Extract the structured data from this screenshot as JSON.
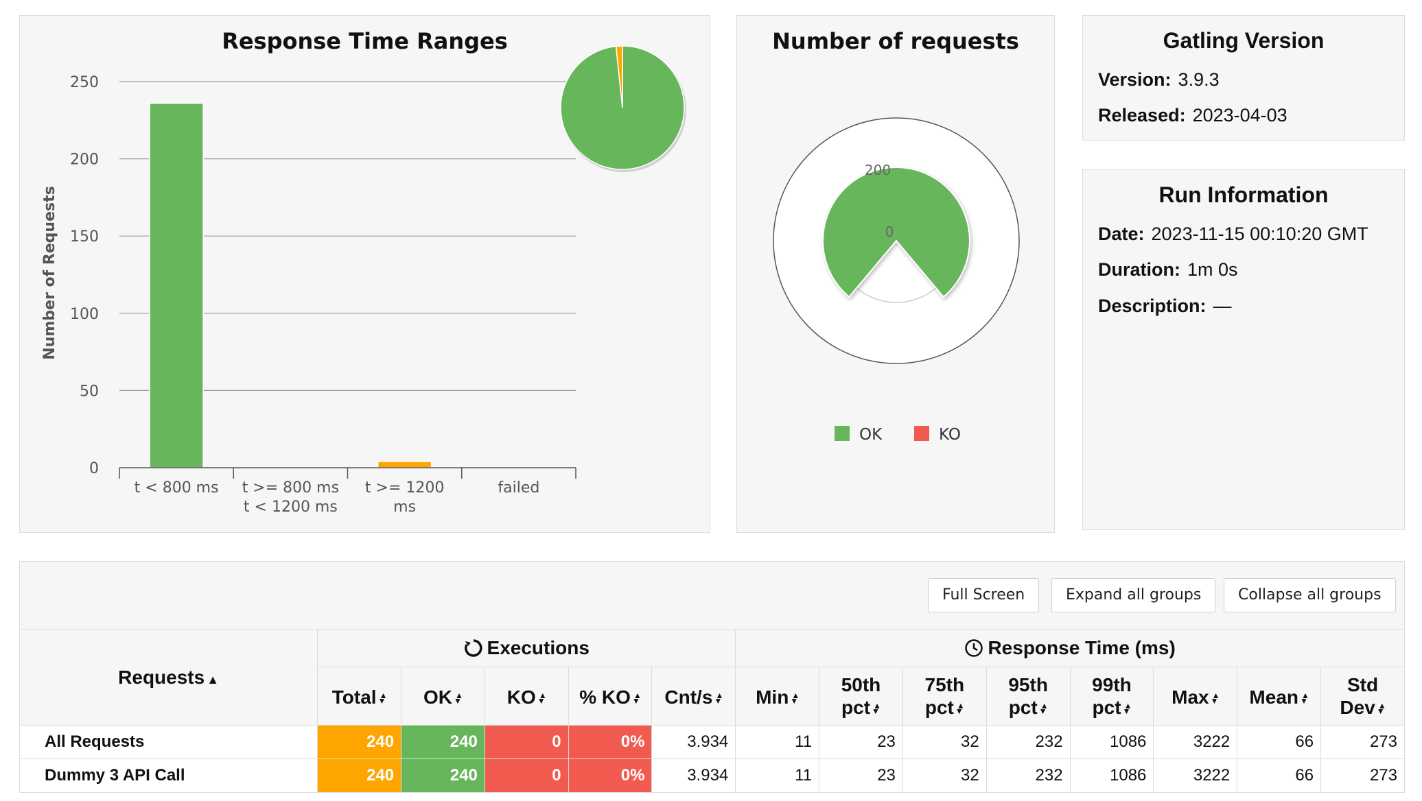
{
  "rt_chart": {
    "title": "Response Time Ranges",
    "ylabel": "Number of Requests",
    "y_ticks": [
      "0",
      "50",
      "100",
      "150",
      "200",
      "250"
    ],
    "categories": [
      {
        "line1": "t < 800 ms",
        "line2": ""
      },
      {
        "line1": "t >= 800 ms",
        "line2": "t < 1200 ms"
      },
      {
        "line1": "t >= 1200",
        "line2": "ms"
      },
      {
        "line1": "failed",
        "line2": ""
      }
    ]
  },
  "requests_chart": {
    "title": "Number of requests",
    "tick_top": "200",
    "tick_center": "0",
    "legend": [
      {
        "label": "OK",
        "color": "#68b65c"
      },
      {
        "label": "KO",
        "color": "#f15b4f"
      }
    ]
  },
  "chart_data": [
    {
      "type": "bar",
      "title": "Response Time Ranges",
      "ylabel": "Number of Requests",
      "categories": [
        "t < 800 ms",
        "t >= 800 ms t < 1200 ms",
        "t >= 1200 ms",
        "failed"
      ],
      "values": [
        236,
        0,
        4,
        0
      ],
      "colors": [
        "#68b65c",
        "#ffa500",
        "#ffa500",
        "#f15b4f"
      ],
      "ylim": [
        0,
        250
      ],
      "grid": true
    },
    {
      "type": "pie",
      "title": "Response Time Ranges",
      "categories": [
        "t < 800 ms",
        "t >= 800 ms t < 1200 ms",
        "t >= 1200 ms",
        "failed"
      ],
      "values": [
        236,
        0,
        4,
        0
      ]
    },
    {
      "type": "pie",
      "title": "Number of requests",
      "categories": [
        "OK",
        "KO"
      ],
      "values": [
        240,
        0
      ],
      "legend": "bottom"
    }
  ],
  "gatling": {
    "title": "Gatling Version",
    "version_label": "Version:",
    "version_value": "3.9.3",
    "released_label": "Released:",
    "released_value": "2023-04-03"
  },
  "run_info": {
    "title": "Run Information",
    "date_label": "Date:",
    "date_value": "2023-11-15 00:10:20 GMT",
    "duration_label": "Duration:",
    "duration_value": "1m 0s",
    "description_label": "Description:",
    "description_value": "—"
  },
  "toolbar": {
    "full_screen": "Full Screen",
    "expand_all": "Expand all groups",
    "collapse_all": "Collapse all groups"
  },
  "table": {
    "requests_header": "Requests",
    "executions_header": "Executions",
    "response_time_header": "Response Time (ms)",
    "exec_columns": [
      {
        "l1": "",
        "l2": "Total"
      },
      {
        "l1": "",
        "l2": "OK"
      },
      {
        "l1": "",
        "l2": "KO"
      },
      {
        "l1": "",
        "l2": "% KO"
      },
      {
        "l1": "",
        "l2": "Cnt/s"
      }
    ],
    "rt_columns": [
      {
        "l1": "",
        "l2": "Min"
      },
      {
        "l1": "50th",
        "l2": "pct"
      },
      {
        "l1": "75th",
        "l2": "pct"
      },
      {
        "l1": "95th",
        "l2": "pct"
      },
      {
        "l1": "99th",
        "l2": "pct"
      },
      {
        "l1": "",
        "l2": "Max"
      },
      {
        "l1": "",
        "l2": "Mean"
      },
      {
        "l1": "Std",
        "l2": "Dev"
      }
    ],
    "rows": [
      {
        "name": "All Requests",
        "total": "240",
        "ok": "240",
        "ko": "0",
        "pct_ko": "0%",
        "cnt_s": "3.934",
        "min": "11",
        "p50": "23",
        "p75": "32",
        "p95": "232",
        "p99": "1086",
        "max": "3222",
        "mean": "66",
        "std": "273"
      },
      {
        "name": "Dummy 3 API Call",
        "total": "240",
        "ok": "240",
        "ko": "0",
        "pct_ko": "0%",
        "cnt_s": "3.934",
        "min": "11",
        "p50": "23",
        "p75": "32",
        "p95": "232",
        "p99": "1086",
        "max": "3222",
        "mean": "66",
        "std": "273"
      }
    ]
  }
}
